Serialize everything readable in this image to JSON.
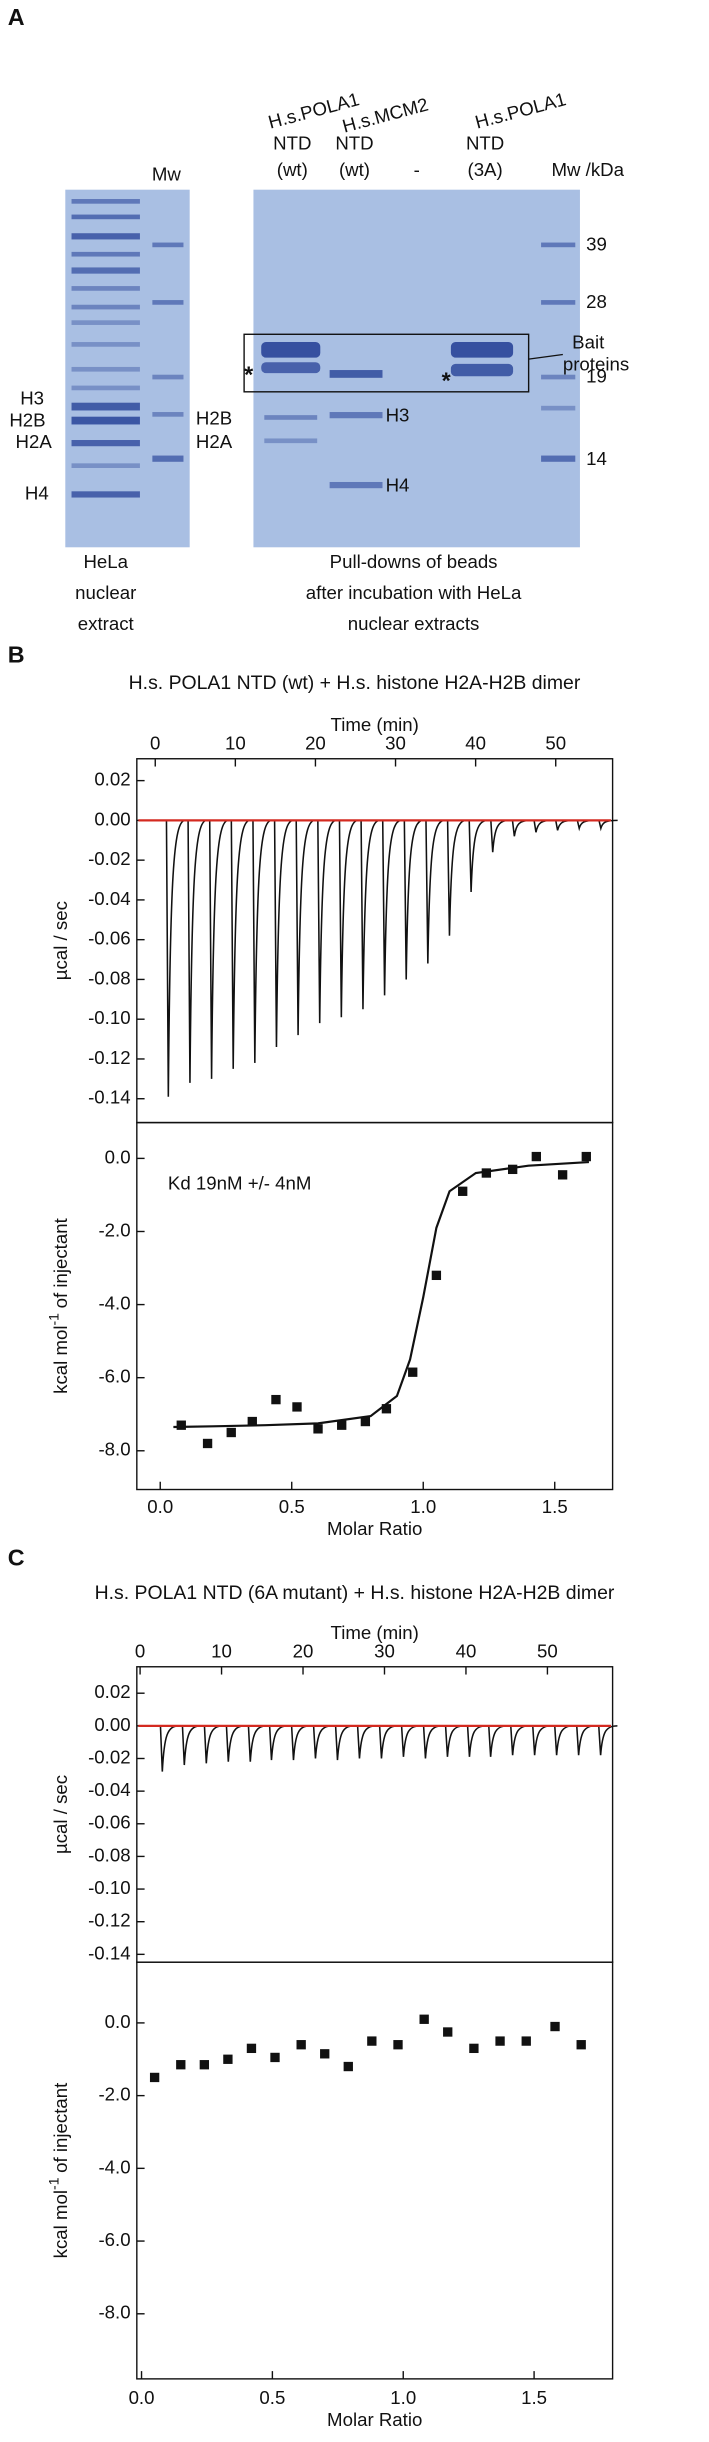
{
  "panel_a": {
    "label": "A",
    "mw_left": "Mw",
    "lane_headers": [
      [
        "H.s.POLA1",
        "NTD",
        "(wt)"
      ],
      [
        "H.s.MCM2",
        "NTD",
        "(wt)"
      ],
      [
        "-"
      ],
      [
        "H.s.POLA1",
        "NTD",
        "(3A)"
      ]
    ],
    "mw_header": "Mw /kDa",
    "mw_markers": [
      "39",
      "28",
      "19",
      "14"
    ],
    "bait_label": [
      "Bait",
      "proteins"
    ],
    "extract_bands": [
      "H3",
      "H2B",
      "H2A",
      "H4"
    ],
    "pulldown_bands_left": [
      "H2B",
      "H2A"
    ],
    "pulldown_bands_lane": [
      "H3",
      "H4"
    ],
    "asterisks": [
      "*",
      "*"
    ],
    "extract_caption": [
      "HeLa",
      "nuclear",
      "extract"
    ],
    "pulldown_caption": [
      "Pull-downs of beads",
      "after incubation with HeLa",
      "nuclear extracts"
    ]
  },
  "chart_data": [
    {
      "type": "itc",
      "panel_label": "B",
      "title": "H.s. POLA1 NTD (wt) + H.s. histone H2A-H2B dimer",
      "thermogram": {
        "xlabel": "Time (min)",
        "ylabel": "µcal / sec",
        "xlim": [
          -2.3,
          57.1
        ],
        "xticks": [
          0,
          10,
          20,
          30,
          40,
          50
        ],
        "ylim": [
          -0.152,
          0.031
        ],
        "yticks": [
          0.02,
          {
            "value": 0,
            "label": "0.00"
          },
          -0.02,
          -0.04,
          -0.06,
          -0.08,
          {
            "value": -0.1,
            "label": "-0.10"
          },
          -0.12,
          -0.14
        ],
        "x": [
          1.4,
          4.1,
          6.8,
          9.5,
          12.2,
          14.9,
          17.6,
          20.3,
          23.0,
          25.7,
          28.4,
          31.1,
          33.8,
          36.5,
          39.2,
          41.9,
          44.6,
          47.3,
          50.0,
          52.7,
          55.4
        ],
        "values": [
          -0.139,
          -0.132,
          -0.13,
          -0.125,
          -0.122,
          -0.114,
          -0.108,
          -0.102,
          -0.099,
          -0.095,
          -0.088,
          -0.08,
          -0.072,
          -0.058,
          -0.036,
          -0.016,
          -0.008,
          -0.006,
          -0.005,
          -0.004,
          -0.004
        ],
        "color": "#111111",
        "baseline_color": "#d42a20"
      },
      "isotherm": {
        "xlabel": "Molar Ratio",
        "ylabel_parts": [
          "kcal mol",
          "-1",
          "of injectant"
        ],
        "annotation": "Kd 19nM +/- 4nM",
        "xlim": [
          -0.089,
          1.72
        ],
        "xticks": [
          {
            "value": 0,
            "label": "0.0"
          },
          0.5,
          {
            "value": 1,
            "label": "1.0"
          },
          1.5
        ],
        "ylim": [
          -9.06,
          0.98
        ],
        "yticks": [
          {
            "value": 0,
            "label": "0.0"
          },
          {
            "value": -2,
            "label": "-2.0"
          },
          {
            "value": -4,
            "label": "-4.0"
          },
          {
            "value": -6,
            "label": "-6.0"
          },
          {
            "value": -8,
            "label": "-8.0"
          }
        ],
        "x": [
          0.08,
          0.18,
          0.27,
          0.35,
          0.44,
          0.52,
          0.6,
          0.69,
          0.78,
          0.86,
          0.96,
          1.05,
          1.15,
          1.24,
          1.34,
          1.43,
          1.53,
          1.62
        ],
        "values": [
          -7.3,
          -7.8,
          -7.5,
          -7.2,
          -6.6,
          -6.8,
          -7.4,
          -7.3,
          -7.2,
          -6.85,
          -5.85,
          -3.2,
          -0.9,
          -0.4,
          -0.3,
          0.05,
          -0.45,
          0.05
        ],
        "fit": {
          "x": [
            0.05,
            0.2,
            0.4,
            0.6,
            0.8,
            0.9,
            0.95,
            1.0,
            1.05,
            1.1,
            1.2,
            1.4,
            1.63
          ],
          "values": [
            -7.35,
            -7.33,
            -7.3,
            -7.25,
            -7.05,
            -6.5,
            -5.5,
            -3.8,
            -1.9,
            -0.9,
            -0.4,
            -0.2,
            -0.1
          ]
        },
        "color": "#111111"
      }
    },
    {
      "type": "itc",
      "panel_label": "C",
      "title": "H.s. POLA1 NTD (6A mutant) + H.s. histone H2A-H2B dimer",
      "thermogram": {
        "xlabel": "Time (min)",
        "ylabel": "µcal / sec",
        "xlim": [
          -0.4,
          58
        ],
        "xticks": [
          0,
          10,
          20,
          30,
          40,
          50
        ],
        "ylim": [
          -0.1448,
          0.0362
        ],
        "yticks": [
          0.02,
          {
            "value": 0,
            "label": "0.00"
          },
          -0.02,
          -0.04,
          -0.06,
          -0.08,
          {
            "value": -0.1,
            "label": "-0.10"
          },
          -0.12,
          -0.14
        ],
        "x": [
          2.5,
          5.2,
          7.9,
          10.6,
          13.3,
          15.9,
          18.6,
          21.3,
          24.0,
          26.7,
          29.4,
          32.1,
          34.8,
          37.5,
          40.2,
          42.8,
          45.5,
          48.2,
          50.9,
          53.6,
          56.3
        ],
        "values": [
          -0.028,
          -0.024,
          -0.023,
          -0.022,
          -0.022,
          -0.021,
          -0.021,
          -0.02,
          -0.021,
          -0.02,
          -0.02,
          -0.019,
          -0.02,
          -0.019,
          -0.019,
          -0.019,
          -0.018,
          -0.018,
          -0.018,
          -0.018,
          -0.018
        ],
        "color": "#111111",
        "baseline_color": "#d42a20"
      },
      "isotherm": {
        "xlabel": "Molar Ratio",
        "ylabel_parts": [
          "kcal mol",
          "-1",
          "of injectant"
        ],
        "xlim": [
          -0.018,
          1.8
        ],
        "xticks": [
          {
            "value": 0,
            "label": "0.0"
          },
          0.5,
          {
            "value": 1,
            "label": "1.0"
          },
          1.5
        ],
        "ylim": [
          -9.79,
          1.67
        ],
        "yticks": [
          {
            "value": 0,
            "label": "0.0"
          },
          {
            "value": -2,
            "label": "-2.0"
          },
          {
            "value": -4,
            "label": "-4.0"
          },
          {
            "value": -6,
            "label": "-6.0"
          },
          {
            "value": -8,
            "label": "-8.0"
          }
        ],
        "x": [
          0.05,
          0.15,
          0.24,
          0.33,
          0.42,
          0.51,
          0.61,
          0.7,
          0.79,
          0.88,
          0.98,
          1.08,
          1.17,
          1.27,
          1.37,
          1.47,
          1.58,
          1.68
        ],
        "values": [
          -1.5,
          -1.15,
          -1.15,
          -1.0,
          -0.7,
          -0.95,
          -0.6,
          -0.85,
          -1.2,
          -0.5,
          -0.6,
          0.1,
          -0.25,
          -0.7,
          -0.5,
          -0.5,
          -0.1,
          -0.6
        ],
        "color": "#111111"
      }
    }
  ]
}
